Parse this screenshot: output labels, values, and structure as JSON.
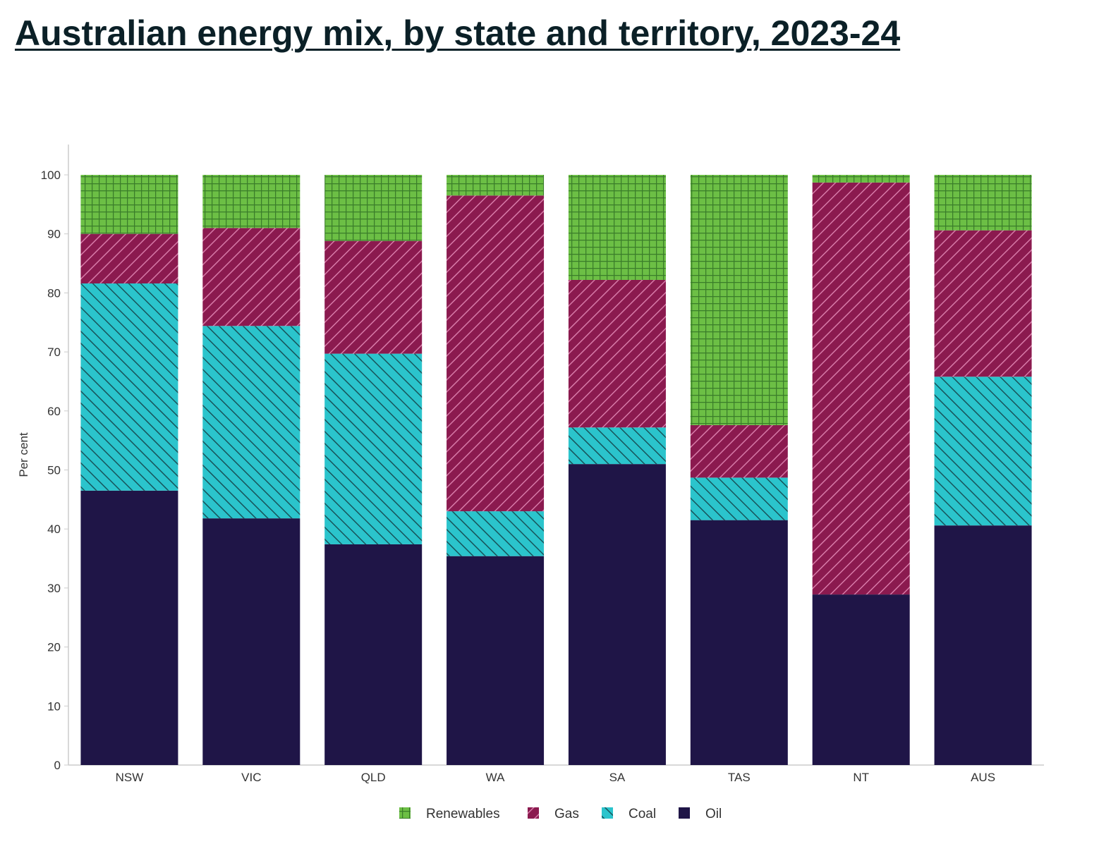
{
  "chart_data": {
    "type": "bar",
    "stacked": true,
    "title": "Australian energy mix, by state and territory, 2023-24",
    "xlabel": "",
    "ylabel": "Per cent",
    "ylim": [
      0,
      100
    ],
    "yticks": [
      0,
      10,
      20,
      30,
      40,
      50,
      60,
      70,
      80,
      90,
      100
    ],
    "categories": [
      "NSW",
      "VIC",
      "QLD",
      "WA",
      "SA",
      "TAS",
      "NT",
      "AUS"
    ],
    "series": [
      {
        "name": "Oil",
        "color": "#1f1547",
        "values": [
          46.5,
          41.8,
          37.4,
          35.4,
          51.0,
          41.5,
          28.9,
          40.6
        ]
      },
      {
        "name": "Coal",
        "color": "#2bc4cc",
        "values": [
          35.1,
          32.6,
          32.3,
          7.6,
          6.2,
          7.2,
          0.0,
          25.2
        ]
      },
      {
        "name": "Gas",
        "color": "#8b1a4f",
        "values": [
          8.4,
          16.6,
          19.1,
          53.5,
          25.0,
          8.9,
          69.8,
          24.8
        ]
      },
      {
        "name": "Renewables",
        "color": "#6cbf45",
        "values": [
          10.0,
          9.0,
          11.2,
          3.5,
          17.8,
          42.4,
          1.3,
          9.4
        ]
      }
    ],
    "legend": {
      "placement": "bottom",
      "order": [
        "Renewables",
        "Gas",
        "Coal",
        "Oil"
      ]
    },
    "grid": false
  }
}
